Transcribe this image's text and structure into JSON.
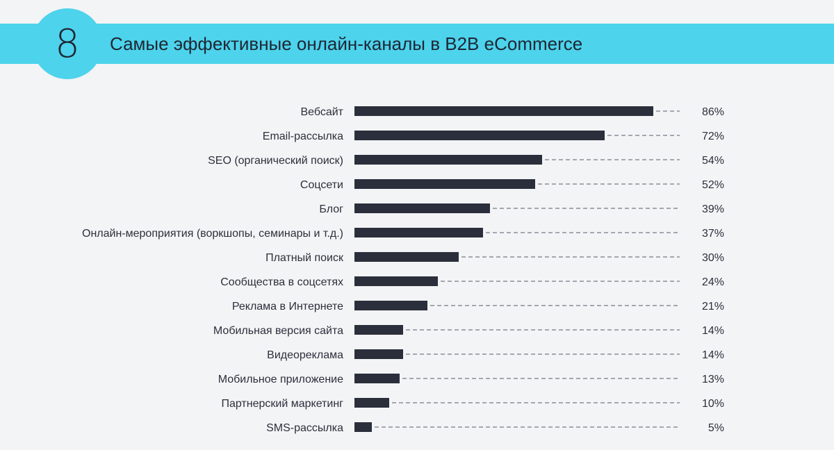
{
  "header": {
    "number": "8",
    "title": "Самые эффективные онлайн-каналы в B2B eCommerce"
  },
  "colors": {
    "accent": "#4dd3ec",
    "bar": "#2b2f3c",
    "background": "#f3f4f5"
  },
  "chart_data": {
    "type": "bar",
    "orientation": "horizontal",
    "title": "Самые эффективные онлайн-каналы в B2B eCommerce",
    "categories": [
      "Вебсайт",
      "Email-рассылка",
      "SEO (органический поиск)",
      "Соцсети",
      "Блог",
      "Онлайн-мероприятия (воркшопы, семинары и т.д.)",
      "Платный поиск",
      "Сообщества в соцсетях",
      "Реклама в Интернете",
      "Мобильная версия сайта",
      "Видеореклама",
      "Мобильное приложение",
      "Партнерский маркетинг",
      "SMS-рассылка"
    ],
    "values": [
      86,
      72,
      54,
      52,
      39,
      37,
      30,
      24,
      21,
      14,
      14,
      13,
      10,
      5
    ],
    "value_labels": [
      "86%",
      "72%",
      "54%",
      "52%",
      "39%",
      "37%",
      "30%",
      "24%",
      "21%",
      "14%",
      "14%",
      "13%",
      "10%",
      "5%"
    ],
    "xlim": [
      0,
      100
    ],
    "grid": false,
    "legend": "none"
  }
}
